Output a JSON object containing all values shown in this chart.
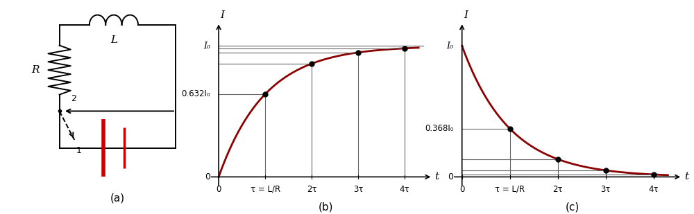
{
  "fig_width": 10.0,
  "fig_height": 3.09,
  "dpi": 100,
  "circuit": {
    "line_color": "#000000",
    "battery_color": "#cc0000",
    "label_a": "(a)"
  },
  "growth": {
    "I0": 1.0,
    "curve_color": "#8b0000",
    "line_color": "#666666",
    "dot_color": "#000000",
    "xlabel": "t",
    "ylabel": "I",
    "y_label_632": "0.632I₀",
    "y_label_I0": "I₀",
    "x_ticks": [
      "0",
      "τ = L/R",
      "2τ",
      "3τ",
      "4τ"
    ],
    "label_b": "(b)"
  },
  "decay": {
    "I0": 1.0,
    "curve_color": "#8b0000",
    "line_color": "#666666",
    "dot_color": "#000000",
    "xlabel": "t",
    "ylabel": "I",
    "y_label_368": "0.368I₀",
    "y_label_I0": "I₀",
    "x_ticks": [
      "0",
      "τ = L/R",
      "2τ",
      "3τ",
      "4τ"
    ],
    "label_c": "(c)"
  }
}
